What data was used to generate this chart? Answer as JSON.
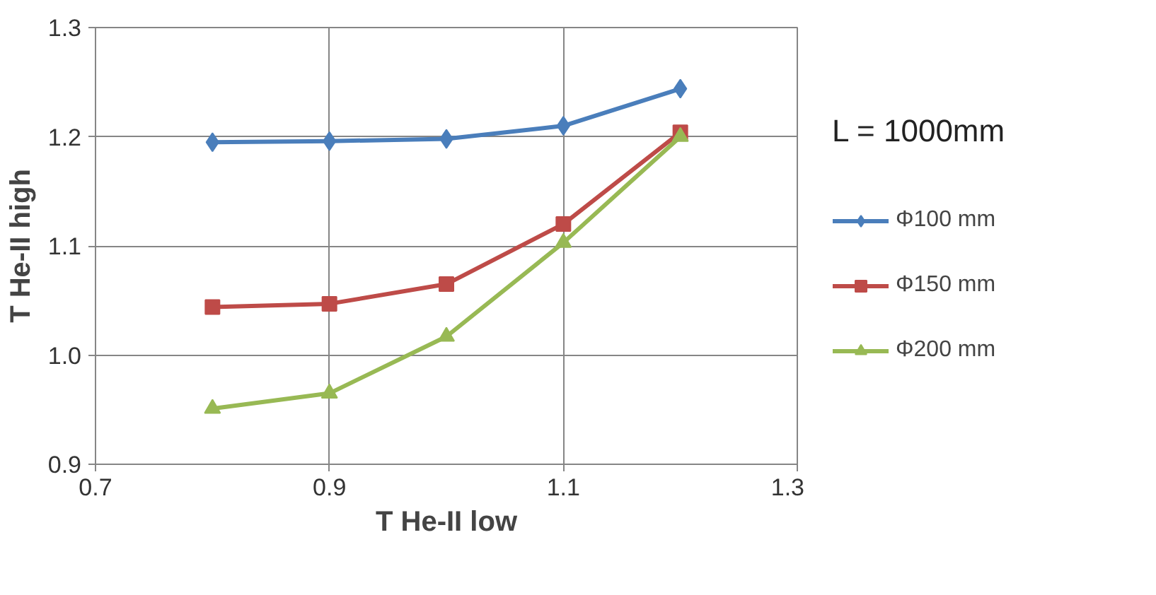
{
  "chart_data": {
    "type": "line",
    "xlabel": "T He-II low",
    "ylabel": "T He-II high",
    "x": [
      0.8,
      0.9,
      1.0,
      1.1,
      1.2
    ],
    "series": [
      {
        "name": "Φ100 mm",
        "color": "#4a7ebb",
        "marker": "diamond",
        "values": [
          1.195,
          1.196,
          1.198,
          1.21,
          1.244
        ]
      },
      {
        "name": "Φ150 mm",
        "color": "#be4b48",
        "marker": "square",
        "values": [
          1.044,
          1.047,
          1.065,
          1.12,
          1.204
        ]
      },
      {
        "name": "Φ200 mm",
        "color": "#98b954",
        "marker": "triangle",
        "values": [
          0.951,
          0.965,
          1.017,
          1.103,
          1.2
        ]
      }
    ],
    "xlim": [
      0.7,
      1.3
    ],
    "xticks": [
      {
        "value": 0.7,
        "label": "0.7"
      },
      {
        "value": 0.9,
        "label": "0.9"
      },
      {
        "value": 1.1,
        "label": "1.1"
      },
      {
        "value": 1.3,
        "label": "1.3"
      }
    ],
    "ylim": [
      0.9,
      1.3
    ],
    "yticks": [
      {
        "value": 0.9,
        "label": "0.9"
      },
      {
        "value": 1.0,
        "label": "1.0"
      },
      {
        "value": 1.1,
        "label": "1.1"
      },
      {
        "value": 1.2,
        "label": "1.2"
      },
      {
        "value": 1.3,
        "label": "1.3"
      }
    ],
    "grid": true,
    "legend": "right",
    "annotations": [
      "L = 1000mm"
    ]
  }
}
